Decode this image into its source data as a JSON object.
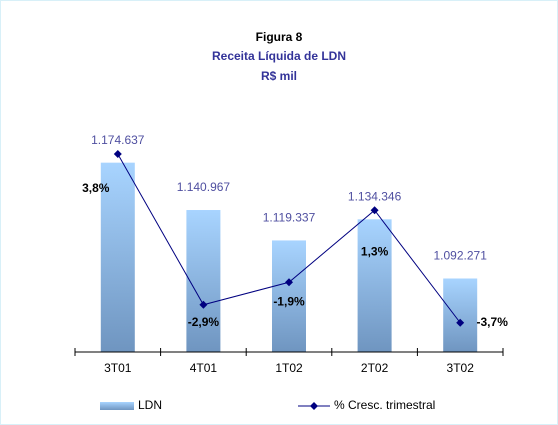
{
  "chart_data": {
    "type": "bar_line",
    "title": "Figura 8",
    "subtitle": "Receita Líquida de LDN",
    "unit_label": "R$ mil",
    "categories": [
      "3T01",
      "4T01",
      "1T02",
      "2T02",
      "3T02"
    ],
    "series": [
      {
        "name": "LDN",
        "type": "bar",
        "color": "#99ccff",
        "values": [
          1174637,
          1140967,
          1119337,
          1134346,
          1092271
        ],
        "value_labels": [
          "1.174.637",
          "1.140.967",
          "1.119.337",
          "1.134.346",
          "1.092.271"
        ]
      },
      {
        "name": "% Cresc. trimestral",
        "type": "line",
        "color": "#000080",
        "axis": "y2",
        "values": [
          3.8,
          -2.9,
          -1.9,
          1.3,
          -3.7
        ],
        "value_labels": [
          "3,8%",
          "-2,9%",
          "-1,9%",
          "1,3%",
          "-3,7%"
        ]
      }
    ],
    "ylim": [
      1040000,
      1200000
    ],
    "y2lim": [
      -5,
      5
    ],
    "legend": "bottom"
  }
}
